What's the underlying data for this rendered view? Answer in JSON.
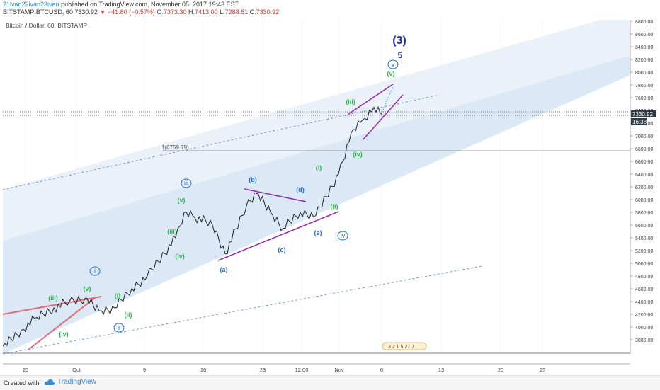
{
  "header": {
    "author": "21ivan22ivan23ivan",
    "published_text": "published on TradingView.com, November 05, 2017 19:43 EST",
    "symbol": "BITSTAMP:BTCUSD, 60",
    "last": "7330.92",
    "change": "▼ −41.80 (−0.57%)",
    "open_label": "O:",
    "open": "7373.30",
    "high_label": "H:",
    "high": "7413.00",
    "low_label": "L:",
    "low": "7288.51",
    "close_label": "C:",
    "close": "7330.92"
  },
  "chart_data": {
    "type": "line",
    "title": "Bitcoin / Dollar, 60, BITSTAMP",
    "ylim": [
      3600,
      8800
    ],
    "y_ticks": [
      "8800.00",
      "8600.00",
      "8400.00",
      "8200.00",
      "8000.00",
      "7800.00",
      "7600.00",
      "7400.00",
      "7200.00",
      "7000.00",
      "6800.00",
      "6600.00",
      "6400.00",
      "6200.00",
      "6000.00",
      "5800.00",
      "5600.00",
      "5400.00",
      "5200.00",
      "5000.00",
      "4800.00",
      "4600.00",
      "4400.00",
      "4200.00",
      "4000.00",
      "3800.00"
    ],
    "x_ticks": [
      "25",
      "Oct",
      "9",
      "16",
      "23",
      "12:00",
      "Nov",
      "6",
      "13",
      "20",
      "25"
    ],
    "price_label": "7330.92",
    "countdown_label": "16:38",
    "level_label": "1(6759.79)",
    "series": [
      {
        "x": [
          "Sep 22",
          "Sep 24",
          "Sep 26",
          "Sep 28",
          "Sep 30",
          "Oct 2",
          "Oct 4",
          "Oct 6",
          "Oct 8",
          "Oct 10",
          "Oct 12",
          "Oct 13",
          "Oct 14",
          "Oct 16",
          "Oct 18",
          "Oct 20",
          "Oct 22",
          "Oct 24",
          "Oct 26",
          "Oct 28",
          "Oct 30",
          "Nov 1",
          "Nov 2",
          "Nov 3",
          "Nov 4",
          "Nov 5"
        ],
        "values": [
          3700,
          3950,
          4150,
          4300,
          4400,
          4450,
          4250,
          4300,
          4600,
          4800,
          5400,
          5800,
          5750,
          5600,
          5150,
          5900,
          6100,
          5800,
          5550,
          5800,
          5750,
          6400,
          7050,
          7250,
          7450,
          7330
        ]
      }
    ],
    "wave_labels": [
      {
        "text": "(3)",
        "color": "#1a2ea8"
      },
      {
        "text": "5",
        "color": "#1a2ea8"
      },
      {
        "text": "v",
        "color": "#1e6fd9"
      },
      {
        "text": "(v)",
        "color": "#2db84b"
      },
      {
        "text": "(iii)",
        "color": "#2db84b"
      },
      {
        "text": "(iv)",
        "color": "#2db84b"
      },
      {
        "text": "(i)",
        "color": "#2db84b"
      },
      {
        "text": "(ii)",
        "color": "#2db84b"
      },
      {
        "text": "(b)",
        "color": "#1e6fd9"
      },
      {
        "text": "(d)",
        "color": "#1e6fd9"
      },
      {
        "text": "(e)",
        "color": "#1e6fd9"
      },
      {
        "text": "(c)",
        "color": "#1e6fd9"
      },
      {
        "text": "(a)",
        "color": "#1e6fd9"
      },
      {
        "text": "iv",
        "color": "#1e6fd9"
      },
      {
        "text": "iii",
        "color": "#1e6fd9"
      },
      {
        "text": "(v)",
        "color": "#2db84b"
      },
      {
        "text": "(iii)",
        "color": "#2db84b"
      },
      {
        "text": "(iv)",
        "color": "#2db84b"
      },
      {
        "text": "i",
        "color": "#1e6fd9"
      },
      {
        "text": "(v)",
        "color": "#2db84b"
      },
      {
        "text": "(iii)",
        "color": "#2db84b"
      },
      {
        "text": "(iv)",
        "color": "#2db84b"
      },
      {
        "text": "(i)",
        "color": "#2db84b"
      },
      {
        "text": "(ii)",
        "color": "#2db84b"
      },
      {
        "text": "ii",
        "color": "#1e6fd9"
      }
    ],
    "event_badges": "3 2 1 5 27 7"
  },
  "footer": {
    "created_with": "Created with",
    "brand": "TradingView"
  },
  "colors": {
    "channel_fill": "#dbe8f5",
    "price_line": "#222222",
    "triangle": "#9b27b0",
    "wedge": "#e56b7a",
    "dashed": "#7b93c8",
    "accent_label": "#3d4650"
  }
}
